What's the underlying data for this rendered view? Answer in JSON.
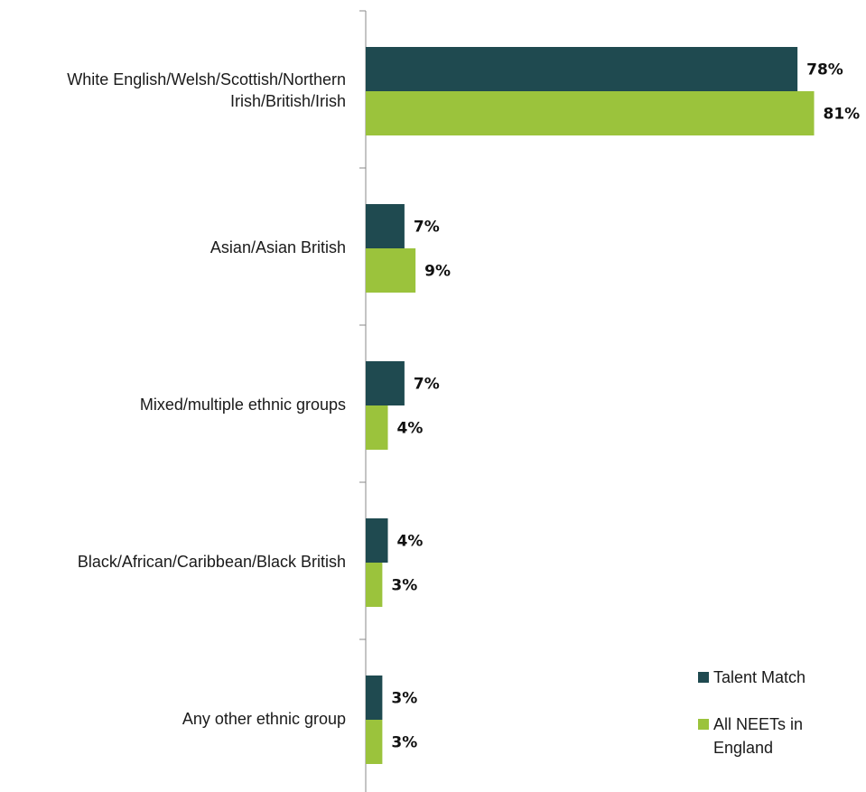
{
  "chart_data": {
    "type": "bar",
    "orientation": "horizontal",
    "categories": [
      "White English/Welsh/Scottish/Northern Irish/British/Irish",
      "Asian/Asian British",
      "Mixed/multiple ethnic groups",
      "Black/African/Caribbean/Black British",
      "Any other ethnic group"
    ],
    "series": [
      {
        "name": "Talent Match",
        "color": "#1f4a50",
        "values": [
          78,
          7,
          7,
          4,
          3
        ],
        "value_labels": [
          "78%",
          "7%",
          "7%",
          "4%",
          "3%"
        ]
      },
      {
        "name": "All NEETs in England",
        "color": "#9bc33c",
        "values": [
          81,
          9,
          4,
          3,
          3
        ],
        "value_labels": [
          "81%",
          "9%",
          "4%",
          "3%",
          "3%"
        ]
      }
    ],
    "legend": "bottom-right"
  }
}
